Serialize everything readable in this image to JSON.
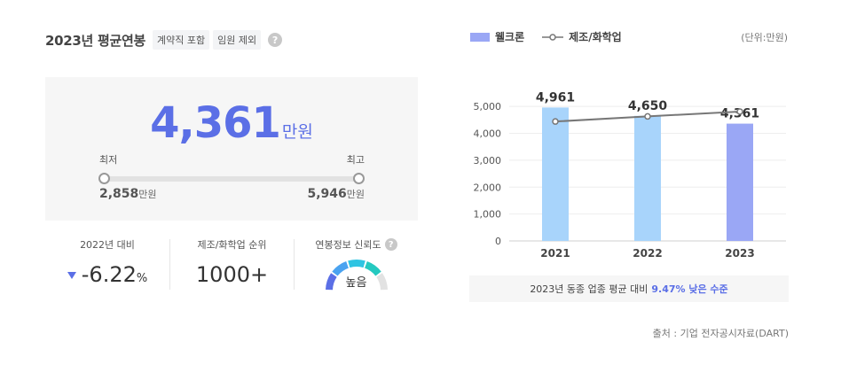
{
  "left": {
    "title": "2023년 평균연봉",
    "tags": [
      "계약직 포함",
      "임원 제외"
    ],
    "help_icon": "?",
    "salary": {
      "value": "4,361",
      "unit": "만원"
    },
    "range": {
      "min_label": "최저",
      "max_label": "최고",
      "min_value": "2,858",
      "max_value": "5,946",
      "unit": "만원"
    },
    "stats": {
      "yoy": {
        "label": "2022년 대비",
        "value": "-6.22",
        "suffix": "%",
        "arrow": "down-arrow-icon"
      },
      "rank": {
        "label": "제조/화학업 순위",
        "value": "1000+"
      },
      "trust": {
        "label": "연봉정보 신뢰도",
        "value": "높음",
        "level": 0.75
      }
    }
  },
  "right": {
    "legend": {
      "bar": "웰크론",
      "line": "제조/화학업"
    },
    "unit_note": "(단위:만원)",
    "footer": {
      "text": "2023년 동종 업종 평균 대비",
      "highlight": "9.47% 낮은 수준"
    },
    "source": "출처 : 기업 전자공시자료(DART)"
  },
  "colors": {
    "accent": "#5b6fe6",
    "bar_past": "#a8d4fb",
    "bar_current": "#9aa7f5",
    "line": "#777777",
    "gauge": [
      "#5b6fe6",
      "#4aa3f0",
      "#2fc4e2",
      "#25c9c0",
      "#e2e2e2"
    ]
  },
  "chart_data": {
    "type": "bar",
    "categories": [
      "2021",
      "2022",
      "2023"
    ],
    "series": [
      {
        "name": "웰크론",
        "type": "bar",
        "values": [
          4961,
          4650,
          4361
        ]
      },
      {
        "name": "제조/화학업",
        "type": "line",
        "values": [
          4440,
          4630,
          4810
        ]
      }
    ],
    "data_labels": [
      "4,961",
      "4,650",
      "4,361"
    ],
    "y_ticks": [
      0,
      1000,
      2000,
      3000,
      4000,
      5000
    ],
    "y_tick_labels": [
      "0",
      "1,000",
      "2,000",
      "3,000",
      "4,000",
      "5,000"
    ],
    "ylim": [
      0,
      5500
    ],
    "grid": true,
    "legend_position": "top-left"
  }
}
